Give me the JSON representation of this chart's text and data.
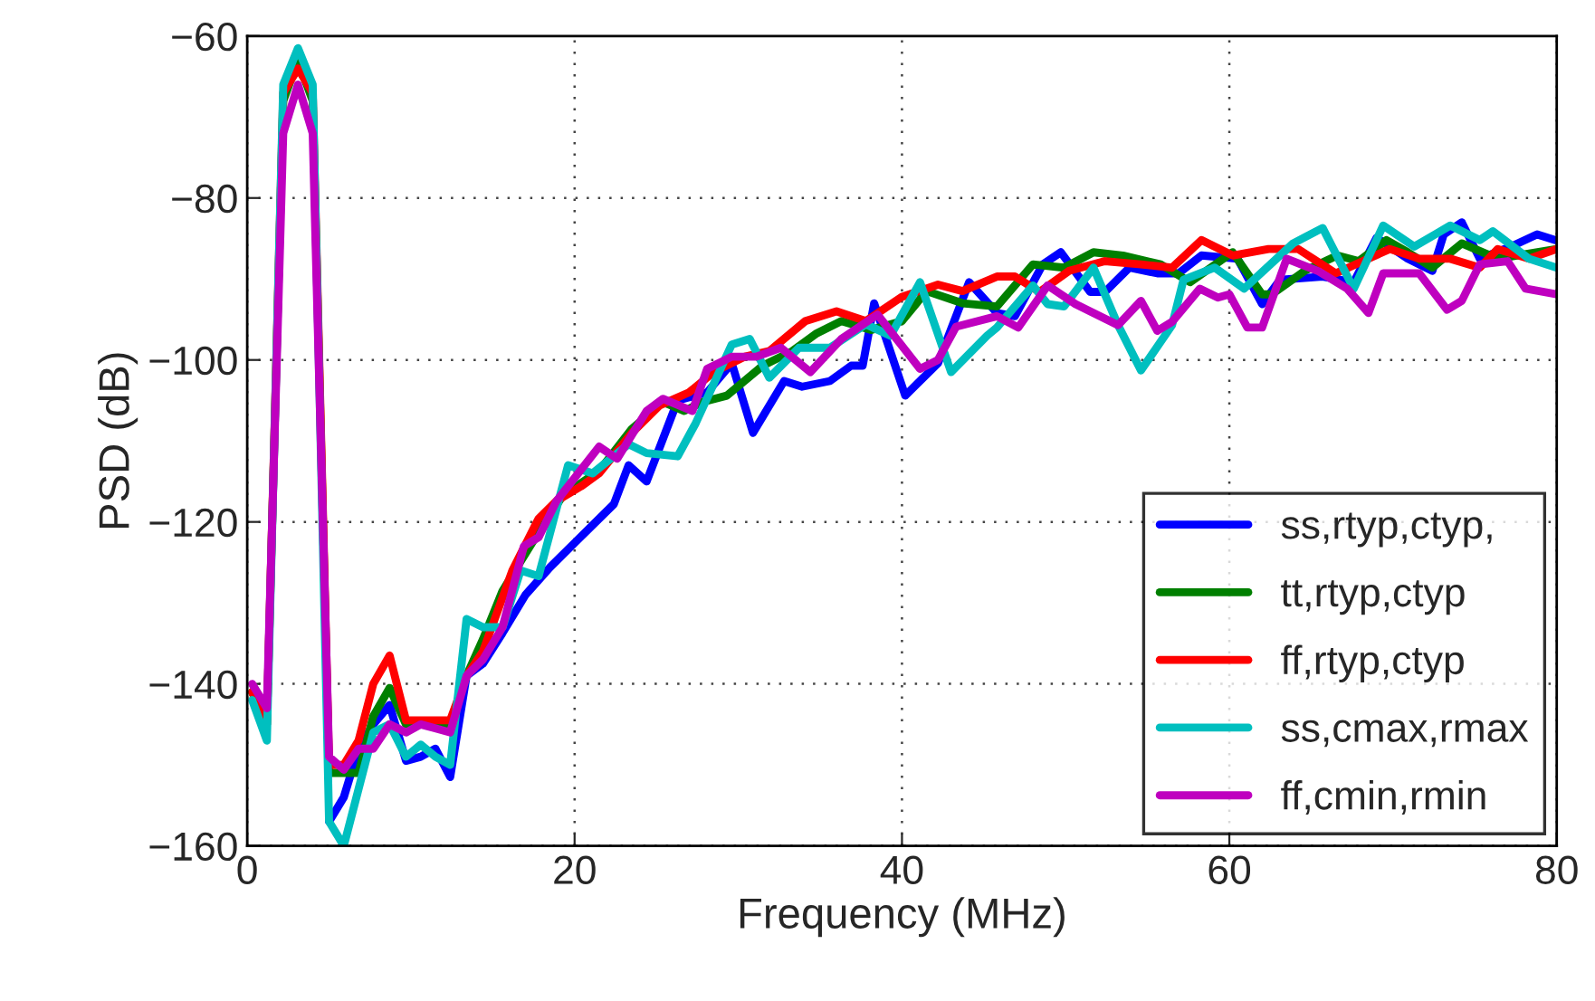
{
  "chart_data": {
    "type": "line",
    "xlabel": "Frequency (MHz)",
    "ylabel": "PSD (dB)",
    "xlim": [
      0,
      80
    ],
    "ylim": [
      -160,
      -60
    ],
    "xticks": [
      0,
      20,
      40,
      60,
      80
    ],
    "yticks": [
      -160,
      -140,
      -120,
      -100,
      -80,
      -60
    ],
    "grid": true,
    "legend": "bottom right",
    "line_style": "solid",
    "marker": "none",
    "series": [
      {
        "name": "ss,rtyp,ctyp,",
        "color": "#0000ff",
        "x": [
          5.0,
          5.9,
          6.8,
          7.7,
          8.7,
          9.7,
          10.6,
          11.5,
          12.4,
          13.4,
          14.4,
          15.6,
          17,
          18.5,
          20,
          22.4,
          23.3,
          24.4,
          26.3,
          28.1,
          29.6,
          30.9,
          32.8,
          33.9,
          35.6,
          36.9,
          37.6,
          38.3,
          40.2,
          42.2,
          44.1,
          45.8,
          46.9,
          48.6,
          49.7,
          51.5,
          52.4,
          53.9,
          55.6,
          56.9,
          58.3,
          60.5,
          62,
          63.1,
          65.7,
          67.6,
          69,
          70.9,
          72.4,
          73.1,
          74.2,
          75.3,
          77.2,
          78.8,
          79.9
        ],
        "values": [
          -157,
          -154,
          -148,
          -145,
          -142.6,
          -149.5,
          -149,
          -148,
          -151.5,
          -139,
          -137.5,
          -133.7,
          -129,
          -125.6,
          -122.6,
          -117.8,
          -113,
          -115,
          -105,
          -104,
          -100.4,
          -109,
          -102.6,
          -103.3,
          -102.6,
          -100.7,
          -100.7,
          -93,
          -104.4,
          -100.4,
          -90.4,
          -94.2,
          -94.6,
          -88.2,
          -86.7,
          -91.6,
          -91.6,
          -88.6,
          -89.3,
          -89.3,
          -87.1,
          -87.5,
          -93.1,
          -90.1,
          -89.7,
          -90.4,
          -84.9,
          -87.5,
          -89,
          -84.5,
          -83,
          -87.5,
          -86,
          -84.5,
          -85.2
        ]
      },
      {
        "name": "tt,rtyp,ctyp",
        "color": "#007f00",
        "x": [
          0.3,
          1.2,
          2.2,
          3.1,
          4.0,
          5.0,
          5.9,
          6.8,
          7.7,
          8.7,
          9.7,
          10.6,
          11.5,
          12.4,
          13.4,
          14.4,
          15.6,
          17.4,
          19.3,
          21.5,
          23.5,
          25.4,
          26.7,
          27.8,
          29.3,
          31.5,
          33.3,
          34.8,
          36.3,
          38.1,
          40,
          41.5,
          43.7,
          45.8,
          48,
          49.9,
          51.7,
          53.5,
          55.8,
          57.6,
          60.2,
          62,
          62.6,
          64.6,
          66.6,
          67.9,
          69.6,
          70.9,
          72.4,
          74.2,
          76.4,
          80
        ],
        "values": [
          -141,
          -145,
          -68,
          -63,
          -68,
          -151,
          -151,
          -151,
          -144,
          -140.5,
          -145,
          -145,
          -145,
          -145,
          -139,
          -134.5,
          -128.5,
          -122.6,
          -116.7,
          -113.7,
          -108.5,
          -105.2,
          -106.3,
          -105.2,
          -104.4,
          -100.7,
          -98.9,
          -96.7,
          -95.2,
          -96.3,
          -95.2,
          -91.5,
          -93,
          -93.4,
          -88.2,
          -88.6,
          -86.7,
          -87.1,
          -88.2,
          -90.4,
          -86.7,
          -91.9,
          -91.9,
          -89,
          -87.1,
          -87.8,
          -85.2,
          -86.7,
          -88.6,
          -85.6,
          -87.5,
          -86.3
        ]
      },
      {
        "name": "ff,rtyp,ctyp",
        "color": "#ff0000",
        "x": [
          0.3,
          1.2,
          2.2,
          3.1,
          4.0,
          5.0,
          5.9,
          6.8,
          7.7,
          8.7,
          9.7,
          10.6,
          11.5,
          12.4,
          13.4,
          14.4,
          16.2,
          17.8,
          18.9,
          20.4,
          21.5,
          23.5,
          25.2,
          27,
          28.5,
          30.4,
          31.9,
          34.1,
          36,
          37.8,
          40,
          42.2,
          43.7,
          45.8,
          46.9,
          48.4,
          50.2,
          52.4,
          54.6,
          56.5,
          58.3,
          60.2,
          62.4,
          64.2,
          66.5,
          69.8,
          71.6,
          73.5,
          75.3,
          76.4,
          78.3,
          80
        ],
        "values": [
          -141,
          -145,
          -67,
          -64,
          -67,
          -150,
          -150,
          -147,
          -140,
          -136.5,
          -144.5,
          -144.5,
          -144.5,
          -144.5,
          -139,
          -136,
          -126,
          -119.6,
          -117.4,
          -115.6,
          -114,
          -109,
          -105.6,
          -104,
          -101.5,
          -99.6,
          -98.9,
          -95.2,
          -94,
          -95.2,
          -92.2,
          -90.7,
          -91.5,
          -89.7,
          -89.7,
          -91.6,
          -89,
          -87.8,
          -88.2,
          -88.6,
          -85.2,
          -87.1,
          -86.3,
          -86.3,
          -89.3,
          -86.3,
          -87.5,
          -87.5,
          -88.6,
          -86.3,
          -87.5,
          -86.3
        ]
      },
      {
        "name": "ss,cmax,rmax",
        "color": "#00bfbf",
        "x": [
          0.3,
          1.2,
          2.2,
          3.1,
          4.0,
          5.0,
          5.9,
          6.8,
          7.7,
          8.7,
          9.7,
          10.6,
          11.5,
          12.4,
          13.4,
          14.4,
          15.6,
          16.7,
          17.8,
          19.6,
          21.1,
          23.3,
          24.4,
          26.3,
          27.4,
          29.6,
          30.7,
          31.9,
          33.7,
          35.6,
          37.8,
          39.3,
          41.1,
          43,
          45.2,
          45.8,
          48,
          48.9,
          49.9,
          51.7,
          53.2,
          54.6,
          56.5,
          57.2,
          59.1,
          60.9,
          63.9,
          65.7,
          67.6,
          69.4,
          71.3,
          73.5,
          75.3,
          76.1,
          78.3,
          80
        ],
        "values": [
          -142,
          -147,
          -66,
          -61.5,
          -66,
          -157,
          -160,
          -153,
          -146,
          -145,
          -149,
          -147.5,
          -149,
          -150,
          -132,
          -133,
          -133,
          -126,
          -126.7,
          -113,
          -114,
          -110.4,
          -111.5,
          -111.9,
          -107.8,
          -98.1,
          -97.4,
          -102.2,
          -98.5,
          -98.5,
          -95.6,
          -97,
          -90.4,
          -101.5,
          -97,
          -96,
          -90.8,
          -93.1,
          -93.4,
          -88.6,
          -95.7,
          -101.3,
          -95.7,
          -90.1,
          -88.6,
          -91.2,
          -85.6,
          -83.7,
          -91.2,
          -83.4,
          -86,
          -83.4,
          -85.2,
          -84.1,
          -87.5,
          -88.6
        ]
      },
      {
        "name": "ff,cmin,rmin",
        "color": "#bf00bf",
        "x": [
          0.3,
          1.2,
          2.2,
          3.1,
          4.0,
          5.0,
          5.9,
          6.8,
          7.7,
          8.7,
          9.7,
          10.6,
          11.5,
          12.4,
          13.4,
          14.4,
          15.6,
          16.9,
          17.8,
          18.9,
          21.5,
          22.6,
          24.4,
          25.4,
          27.2,
          28.1,
          29.6,
          31.1,
          32.6,
          34.4,
          36.3,
          38.5,
          41.1,
          42.2,
          43.3,
          45.8,
          47.1,
          48.9,
          50.6,
          53.2,
          54.6,
          55.6,
          56.5,
          58.2,
          59.3,
          60,
          61.1,
          62,
          63.5,
          65.4,
          67.2,
          68.5,
          69.4,
          71.6,
          73.3,
          74.2,
          75.3,
          77,
          78.1,
          80
        ],
        "values": [
          -140,
          -143,
          -72,
          -66,
          -72,
          -149,
          -150.6,
          -148,
          -148,
          -145,
          -146,
          -145,
          -145.5,
          -146,
          -139,
          -137,
          -133,
          -123,
          -121.9,
          -117.4,
          -110.7,
          -112.2,
          -106.3,
          -104.8,
          -106.3,
          -101.1,
          -99.6,
          -99.6,
          -98.5,
          -101.5,
          -97.4,
          -94.4,
          -101.1,
          -100,
          -95.9,
          -94.6,
          -96,
          -90.8,
          -93.1,
          -95.7,
          -92.7,
          -96.4,
          -95.3,
          -91.2,
          -92.3,
          -91.9,
          -96,
          -96,
          -87.5,
          -89,
          -91.2,
          -94.2,
          -89.3,
          -89.3,
          -93.8,
          -92.7,
          -88.2,
          -87.8,
          -91.2,
          -91.9
        ]
      }
    ]
  }
}
